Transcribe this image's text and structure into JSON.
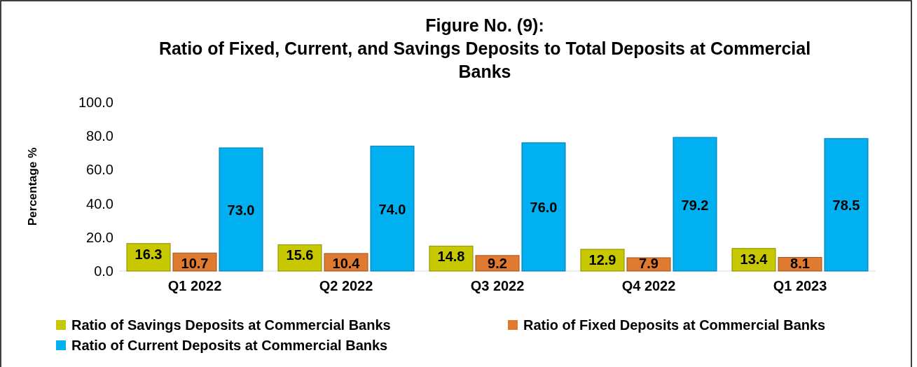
{
  "chart_data": {
    "type": "bar",
    "title": "Figure No. (9):\nRatio of Fixed, Current, and Savings Deposits to Total Deposits at Commercial\nBanks",
    "ylabel": "Percentage %",
    "categories": [
      "Q1 2022",
      "Q2 2022",
      "Q3 2022",
      "Q4 2022",
      "Q1 2023"
    ],
    "series": [
      {
        "name": "Ratio of Savings Deposits at Commercial Banks",
        "color": "#c8c800",
        "values": [
          16.3,
          15.6,
          14.8,
          12.9,
          13.4
        ],
        "value_labels": [
          "16.3",
          "15.6",
          "14.8",
          "12.9",
          "13.4"
        ]
      },
      {
        "name": "Ratio of Fixed Deposits at Commercial Banks",
        "color": "#e07a30",
        "values": [
          10.7,
          10.4,
          9.2,
          7.9,
          8.1
        ],
        "value_labels": [
          "10.7",
          "10.4",
          "9.2",
          "7.9",
          "8.1"
        ]
      },
      {
        "name": "Ratio of Current Deposits at Commercial Banks",
        "color": "#00b0f0",
        "values": [
          73.0,
          74.0,
          76.0,
          79.2,
          78.5
        ],
        "value_labels": [
          "73.0",
          "74.0",
          "76.0",
          "79.2",
          "78.5"
        ]
      }
    ],
    "ylim": [
      0,
      100
    ],
    "yticks": [
      {
        "value": 0,
        "label": "0.0"
      },
      {
        "value": 20,
        "label": "20.0"
      },
      {
        "value": 40,
        "label": "40.0"
      },
      {
        "value": 60,
        "label": "60.0"
      },
      {
        "value": 80,
        "label": "80.0"
      },
      {
        "value": 100,
        "label": "100.0"
      }
    ],
    "grid": false,
    "legend": "bottom"
  }
}
